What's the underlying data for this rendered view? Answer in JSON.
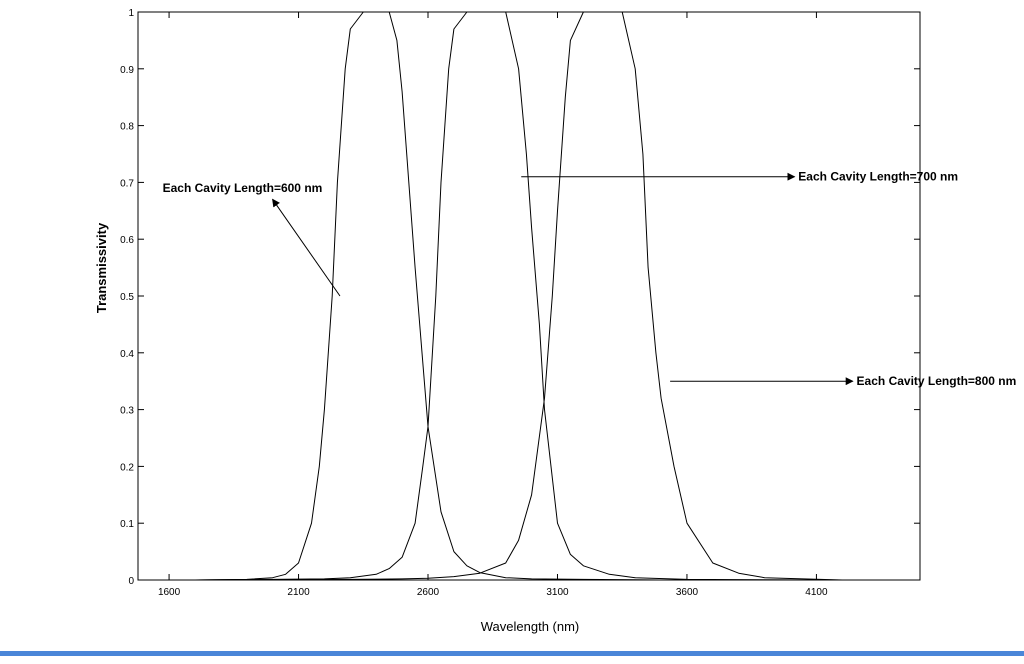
{
  "chart_data": {
    "type": "line",
    "xlabel": "Wavelength (nm)",
    "ylabel": "Transmissivity",
    "xlim": [
      1480,
      4500
    ],
    "ylim": [
      0,
      1
    ],
    "xticks": [
      1600,
      2100,
      2600,
      3100,
      3600,
      4100
    ],
    "yticks": [
      0,
      0.1,
      0.2,
      0.3,
      0.4,
      0.5,
      0.6,
      0.7,
      0.8,
      0.9,
      1
    ],
    "grid": false,
    "line_color": "#000000",
    "x_range_plotted": [
      1700,
      4200
    ],
    "series": [
      {
        "x": [
          1700,
          1900,
          2000,
          2050,
          2100,
          2150,
          2180,
          2200,
          2230,
          2250,
          2280,
          2300,
          2350,
          2400,
          2450,
          2480,
          2500,
          2550,
          2600,
          2650,
          2700,
          2750,
          2800,
          2900,
          3000,
          3200,
          3500,
          4200
        ],
        "y": [
          0,
          0.001,
          0.004,
          0.01,
          0.03,
          0.1,
          0.2,
          0.3,
          0.5,
          0.7,
          0.9,
          0.97,
          1.0,
          1.0,
          1.0,
          0.95,
          0.86,
          0.55,
          0.27,
          0.12,
          0.05,
          0.025,
          0.013,
          0.004,
          0.002,
          0.001,
          0,
          0
        ]
      },
      {
        "x": [
          1700,
          2000,
          2200,
          2300,
          2400,
          2450,
          2500,
          2550,
          2580,
          2600,
          2630,
          2650,
          2680,
          2700,
          2750,
          2800,
          2850,
          2900,
          2950,
          2980,
          3000,
          3030,
          3050,
          3100,
          3150,
          3200,
          3300,
          3400,
          3600,
          4200
        ],
        "y": [
          0,
          0.001,
          0.002,
          0.004,
          0.01,
          0.02,
          0.04,
          0.1,
          0.2,
          0.27,
          0.5,
          0.7,
          0.9,
          0.97,
          1.0,
          1.0,
          1.0,
          1.0,
          0.9,
          0.75,
          0.62,
          0.45,
          0.3,
          0.1,
          0.045,
          0.025,
          0.01,
          0.004,
          0.001,
          0
        ]
      },
      {
        "x": [
          1700,
          2300,
          2500,
          2600,
          2700,
          2800,
          2900,
          2950,
          3000,
          3050,
          3080,
          3100,
          3130,
          3150,
          3200,
          3250,
          3300,
          3350,
          3400,
          3430,
          3450,
          3480,
          3500,
          3550,
          3600,
          3700,
          3800,
          3900,
          4200
        ],
        "y": [
          0,
          0.001,
          0.002,
          0.003,
          0.006,
          0.012,
          0.03,
          0.07,
          0.15,
          0.32,
          0.5,
          0.65,
          0.85,
          0.95,
          1.0,
          1.0,
          1.0,
          1.0,
          0.9,
          0.75,
          0.55,
          0.4,
          0.32,
          0.2,
          0.1,
          0.03,
          0.012,
          0.004,
          0
        ]
      }
    ],
    "annotations": [
      {
        "text": "Each Cavity Length=600 nm",
        "arrow_from": [
          2260,
          0.5
        ],
        "arrow_to": [
          2000,
          0.67
        ],
        "text_at": [
          1575,
          0.69
        ]
      },
      {
        "text": "Each Cavity Length=700 nm",
        "arrow_from": [
          2960,
          0.71
        ],
        "arrow_to": [
          4015,
          0.71
        ],
        "text_at": [
          4030,
          0.71
        ]
      },
      {
        "text": "Each Cavity Length=800 nm",
        "arrow_from": [
          3535,
          0.35
        ],
        "arrow_to": [
          4240,
          0.35
        ],
        "text_at": [
          4255,
          0.35
        ]
      }
    ]
  }
}
